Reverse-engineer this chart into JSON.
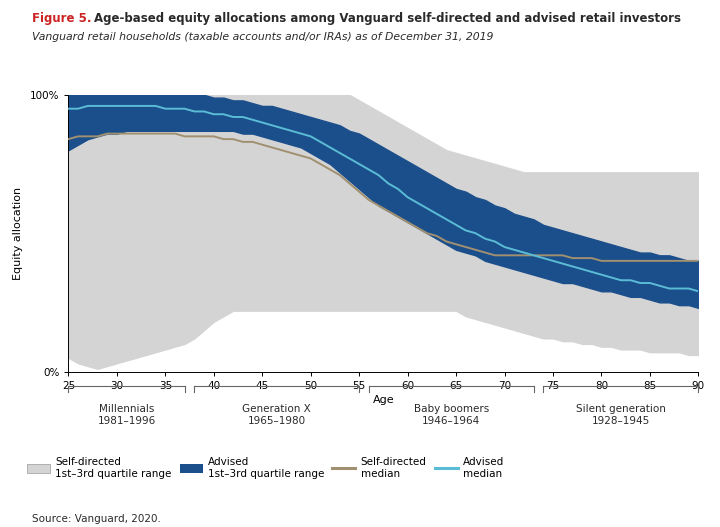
{
  "title_figure": "Figure 5.",
  "title_main": "Age-based equity allocations among Vanguard self-directed and advised retail investors",
  "subtitle": "Vanguard retail households (taxable accounts and/or IRAs) as of December 31, 2019",
  "xlabel": "Age",
  "ylabel": "Equity allocation",
  "source": "Source: Vanguard, 2020.",
  "colors": {
    "self_directed_fill": "#d4d4d4",
    "advised_fill": "#1b4f8c",
    "self_directed_median": "#a09070",
    "advised_median": "#5bbcd6",
    "background": "#ffffff",
    "text_dark": "#2a2a2a",
    "text_red": "#cc2222",
    "bracket_color": "#666666"
  },
  "ages": [
    25,
    26,
    27,
    28,
    29,
    30,
    31,
    32,
    33,
    34,
    35,
    36,
    37,
    38,
    39,
    40,
    41,
    42,
    43,
    44,
    45,
    46,
    47,
    48,
    49,
    50,
    51,
    52,
    53,
    54,
    55,
    56,
    57,
    58,
    59,
    60,
    61,
    62,
    63,
    64,
    65,
    66,
    67,
    68,
    69,
    70,
    71,
    72,
    73,
    74,
    75,
    76,
    77,
    78,
    79,
    80,
    81,
    82,
    83,
    84,
    85,
    86,
    87,
    88,
    89,
    90
  ],
  "sd_q1": [
    5,
    3,
    2,
    1,
    2,
    3,
    4,
    5,
    6,
    7,
    8,
    9,
    10,
    12,
    15,
    18,
    20,
    22,
    22,
    22,
    22,
    22,
    22,
    22,
    22,
    22,
    22,
    22,
    22,
    22,
    22,
    22,
    22,
    22,
    22,
    22,
    22,
    22,
    22,
    22,
    22,
    20,
    19,
    18,
    17,
    16,
    15,
    14,
    13,
    12,
    12,
    11,
    11,
    10,
    10,
    9,
    9,
    8,
    8,
    8,
    7,
    7,
    7,
    7,
    6,
    6
  ],
  "sd_q3": [
    100,
    100,
    100,
    100,
    100,
    100,
    100,
    100,
    100,
    100,
    100,
    100,
    100,
    100,
    100,
    100,
    100,
    100,
    100,
    100,
    100,
    100,
    100,
    100,
    100,
    100,
    100,
    100,
    100,
    100,
    98,
    96,
    94,
    92,
    90,
    88,
    86,
    84,
    82,
    80,
    79,
    78,
    77,
    76,
    75,
    74,
    73,
    72,
    72,
    72,
    72,
    72,
    72,
    72,
    72,
    72,
    72,
    72,
    72,
    72,
    72,
    72,
    72,
    72,
    72,
    72
  ],
  "sd_median": [
    84,
    85,
    85,
    85,
    86,
    86,
    86,
    86,
    86,
    86,
    86,
    86,
    85,
    85,
    85,
    85,
    84,
    84,
    83,
    83,
    82,
    81,
    80,
    79,
    78,
    77,
    75,
    73,
    71,
    68,
    65,
    62,
    60,
    58,
    56,
    54,
    52,
    50,
    49,
    47,
    46,
    45,
    44,
    43,
    42,
    42,
    42,
    42,
    42,
    42,
    42,
    42,
    41,
    41,
    41,
    40,
    40,
    40,
    40,
    40,
    40,
    40,
    40,
    40,
    40,
    40
  ],
  "adv_q1": [
    80,
    82,
    84,
    85,
    86,
    86,
    87,
    87,
    87,
    87,
    87,
    87,
    87,
    87,
    87,
    87,
    87,
    87,
    86,
    86,
    85,
    84,
    83,
    82,
    81,
    79,
    77,
    75,
    72,
    69,
    66,
    63,
    60,
    58,
    56,
    54,
    52,
    50,
    48,
    46,
    44,
    43,
    42,
    40,
    39,
    38,
    37,
    36,
    35,
    34,
    33,
    32,
    32,
    31,
    30,
    29,
    29,
    28,
    27,
    27,
    26,
    25,
    25,
    24,
    24,
    23
  ],
  "adv_q3": [
    100,
    100,
    100,
    100,
    100,
    100,
    100,
    100,
    100,
    100,
    100,
    100,
    100,
    100,
    100,
    99,
    99,
    98,
    98,
    97,
    96,
    96,
    95,
    94,
    93,
    92,
    91,
    90,
    89,
    87,
    86,
    84,
    82,
    80,
    78,
    76,
    74,
    72,
    70,
    68,
    66,
    65,
    63,
    62,
    60,
    59,
    57,
    56,
    55,
    53,
    52,
    51,
    50,
    49,
    48,
    47,
    46,
    45,
    44,
    43,
    43,
    42,
    42,
    41,
    40,
    40
  ],
  "adv_median": [
    95,
    95,
    96,
    96,
    96,
    96,
    96,
    96,
    96,
    96,
    95,
    95,
    95,
    94,
    94,
    93,
    93,
    92,
    92,
    91,
    90,
    89,
    88,
    87,
    86,
    85,
    83,
    81,
    79,
    77,
    75,
    73,
    71,
    68,
    66,
    63,
    61,
    59,
    57,
    55,
    53,
    51,
    50,
    48,
    47,
    45,
    44,
    43,
    42,
    41,
    40,
    39,
    38,
    37,
    36,
    35,
    34,
    33,
    33,
    32,
    32,
    31,
    30,
    30,
    30,
    29
  ]
}
